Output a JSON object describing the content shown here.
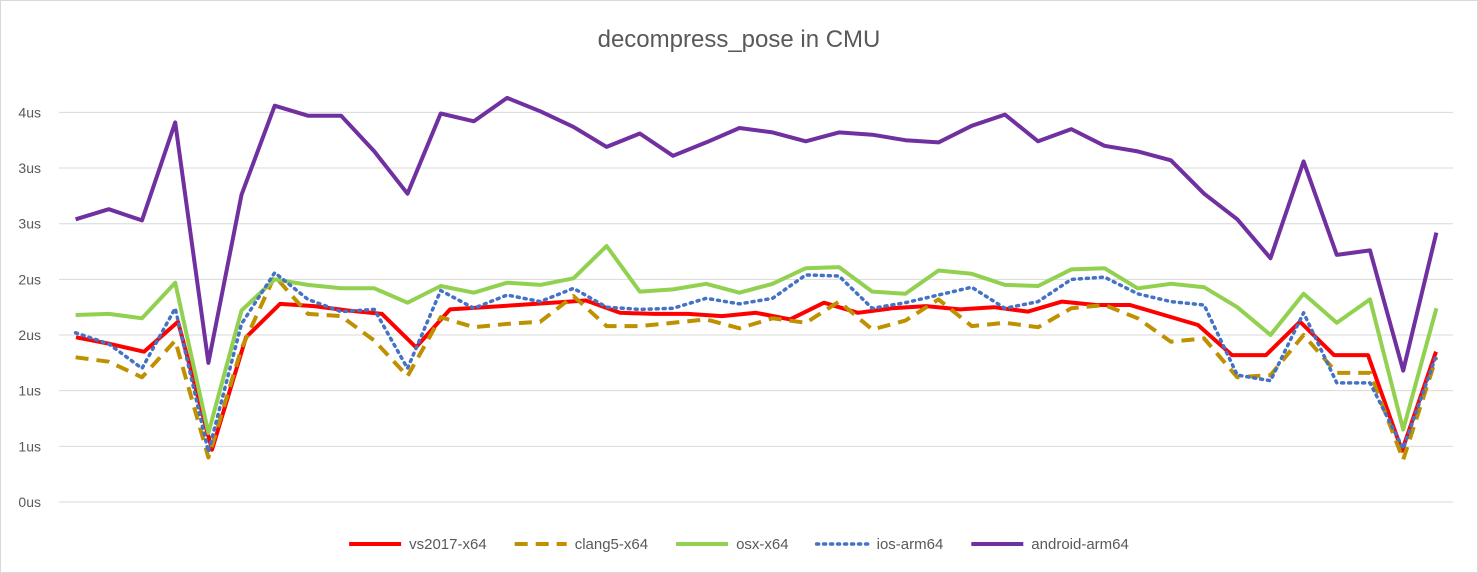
{
  "chart_data": {
    "type": "line",
    "title": "decompress_pose  in CMU",
    "xlabel": "",
    "ylabel": "",
    "ylim": [
      0,
      3.8
    ],
    "y_tick_values": [
      0,
      0.5,
      1,
      1.5,
      2,
      2.5,
      3,
      3.5
    ],
    "y_tick_labels": [
      "0us",
      "1us",
      "1us",
      "2us",
      "2us",
      "3us",
      "3us",
      "4us"
    ],
    "grid": true,
    "legend_position": "bottom",
    "series": [
      {
        "name": "vs2017-x64",
        "color": "#ff0000",
        "dash": "solid",
        "values": [
          1.48,
          1.42,
          1.35,
          1.62,
          0.47,
          1.48,
          1.78,
          1.76,
          1.72,
          1.69,
          1.39,
          1.73,
          1.75,
          1.77,
          1.79,
          1.81,
          1.7,
          1.69,
          1.69,
          1.67,
          1.7,
          1.64,
          1.79,
          1.7,
          1.74,
          1.76,
          1.73,
          1.75,
          1.71,
          1.8,
          1.77,
          1.77,
          1.68,
          1.59,
          1.32,
          1.32,
          1.62,
          1.32,
          1.32,
          0.46,
          1.35
        ]
      },
      {
        "name": "clang5-x64",
        "color": "#bf9000",
        "dash": "dashed",
        "values": [
          1.3,
          1.26,
          1.12,
          1.45,
          0.4,
          1.38,
          2.03,
          1.69,
          1.67,
          1.45,
          1.13,
          1.66,
          1.57,
          1.6,
          1.62,
          1.85,
          1.58,
          1.58,
          1.61,
          1.64,
          1.56,
          1.65,
          1.61,
          1.8,
          1.55,
          1.63,
          1.82,
          1.58,
          1.61,
          1.57,
          1.74,
          1.77,
          1.65,
          1.44,
          1.47,
          1.12,
          1.14,
          1.5,
          1.16,
          1.16,
          0.38,
          1.3
        ]
      },
      {
        "name": "osx-x64",
        "color": "#92d050",
        "dash": "solid",
        "values": [
          1.68,
          1.69,
          1.65,
          1.97,
          0.62,
          1.72,
          2.0,
          1.95,
          1.92,
          1.92,
          1.79,
          1.94,
          1.88,
          1.97,
          1.95,
          2.01,
          2.3,
          1.89,
          1.91,
          1.96,
          1.88,
          1.96,
          2.1,
          2.11,
          1.89,
          1.87,
          2.08,
          2.05,
          1.95,
          1.94,
          2.09,
          2.1,
          1.92,
          1.96,
          1.93,
          1.75,
          1.5,
          1.87,
          1.61,
          1.82,
          0.65,
          1.74
        ]
      },
      {
        "name": "ios-arm64",
        "color": "#4472c4",
        "dash": "dotted",
        "values": [
          1.52,
          1.42,
          1.2,
          1.74,
          0.45,
          1.6,
          2.06,
          1.82,
          1.71,
          1.73,
          1.2,
          1.9,
          1.74,
          1.86,
          1.8,
          1.92,
          1.75,
          1.73,
          1.74,
          1.83,
          1.78,
          1.83,
          2.04,
          2.03,
          1.74,
          1.79,
          1.86,
          1.93,
          1.74,
          1.8,
          2.0,
          2.02,
          1.87,
          1.8,
          1.77,
          1.14,
          1.09,
          1.7,
          1.07,
          1.07,
          0.48,
          1.32
        ]
      },
      {
        "name": "android-arm64",
        "color": "#7030a0",
        "dash": "solid",
        "values": [
          2.54,
          2.63,
          2.53,
          3.41,
          1.25,
          2.76,
          3.56,
          3.47,
          3.47,
          3.15,
          2.77,
          3.49,
          3.42,
          3.63,
          3.51,
          3.37,
          3.19,
          3.31,
          3.11,
          3.23,
          3.36,
          3.32,
          3.24,
          3.32,
          3.3,
          3.25,
          3.23,
          3.38,
          3.48,
          3.24,
          3.35,
          3.2,
          3.15,
          3.07,
          2.77,
          2.54,
          2.19,
          3.06,
          2.22,
          2.26,
          1.18,
          2.42
        ]
      }
    ]
  }
}
